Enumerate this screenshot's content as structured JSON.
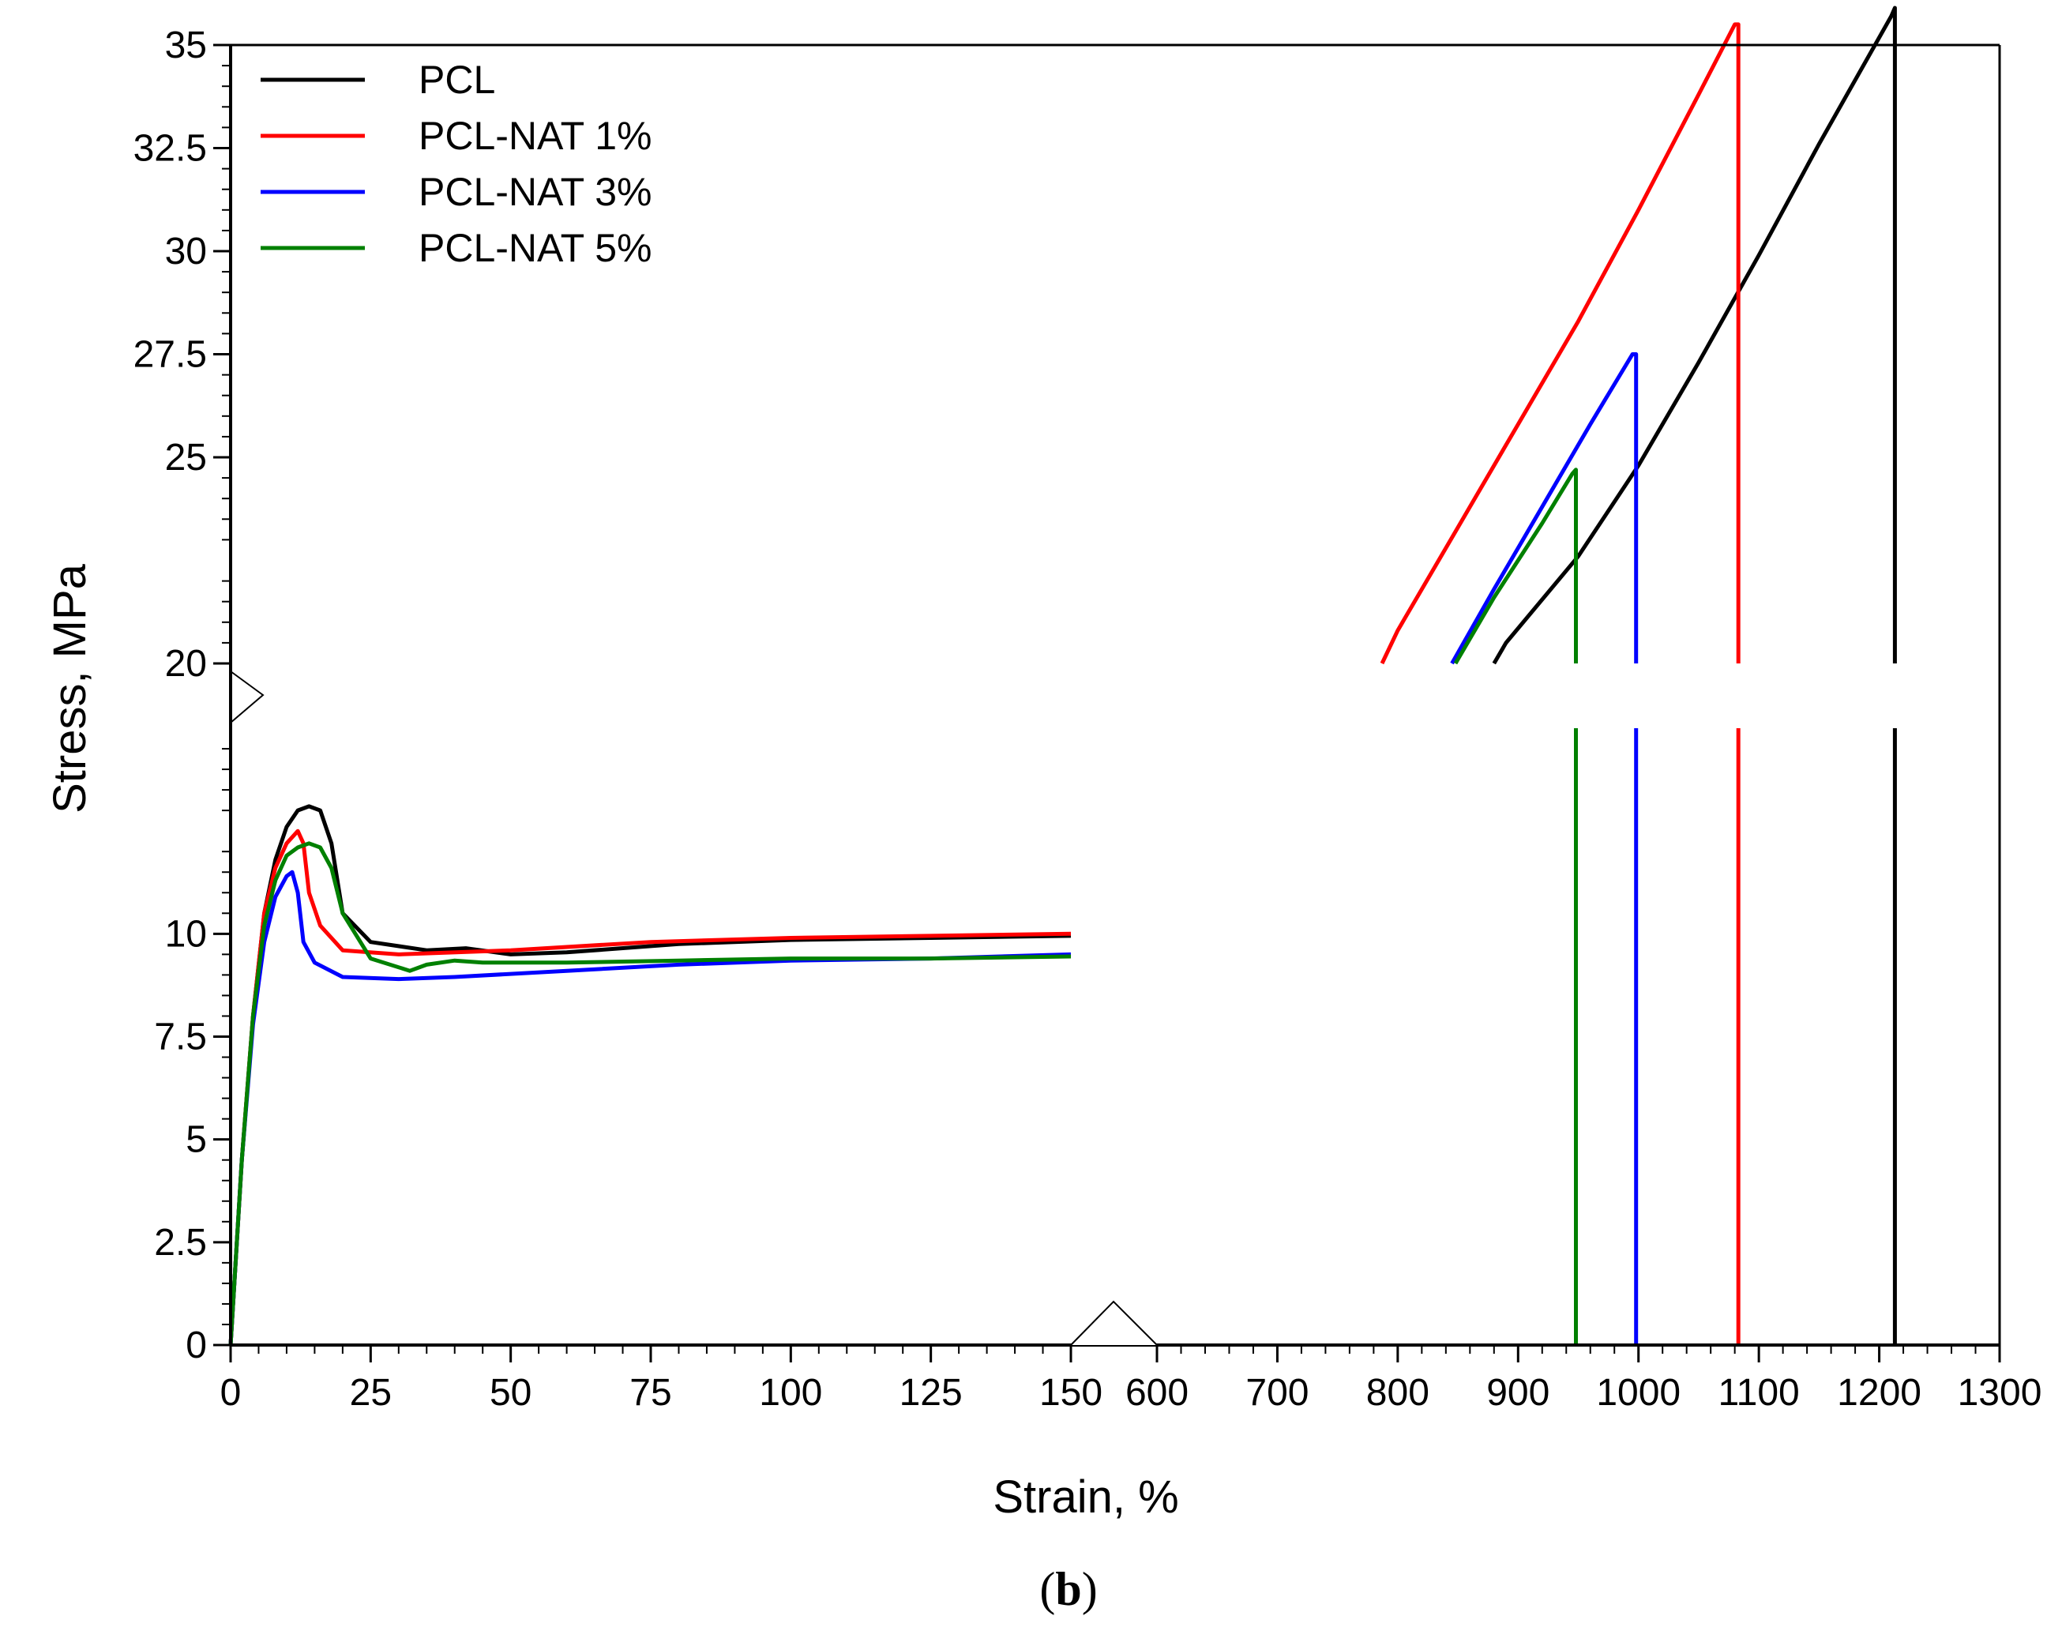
{
  "chart_data": {
    "type": "line",
    "xlabel": "Strain, %",
    "ylabel": "Stress, MPa",
    "panel_label_open": "(",
    "panel_label_letter": "b",
    "panel_label_close": ")",
    "x_break": [
      150,
      600
    ],
    "y_break": [
      15,
      20
    ],
    "xlim_left": [
      0,
      150
    ],
    "xlim_right": [
      600,
      1300
    ],
    "ylim_lower": [
      0,
      15
    ],
    "ylim_upper": [
      20,
      35
    ],
    "x_ticks_left": [
      0,
      25,
      50,
      75,
      100,
      125,
      150
    ],
    "x_tick_labels_left": [
      "0",
      "25",
      "50",
      "75",
      "100",
      "125",
      "150"
    ],
    "x_ticks_right": [
      600,
      700,
      800,
      900,
      1000,
      1100,
      1200,
      1300
    ],
    "x_tick_labels_right": [
      "600",
      "700",
      "800",
      "900",
      "1000",
      "1100",
      "1200",
      "1300"
    ],
    "y_ticks_lower": [
      0,
      2.5,
      5,
      7.5,
      10
    ],
    "y_tick_labels_lower": [
      "0",
      "2.5",
      "5",
      "7.5",
      "10"
    ],
    "y_ticks_upper": [
      20,
      25,
      27.5,
      30,
      32.5,
      35
    ],
    "y_tick_labels_upper": [
      "20",
      "25",
      "27.5",
      "30",
      "32.5",
      "35"
    ],
    "legend_position": "top-left",
    "series": [
      {
        "name": "PCL",
        "color": "#000000",
        "points": [
          [
            0,
            0
          ],
          [
            2,
            4.5
          ],
          [
            4,
            8
          ],
          [
            6,
            10.5
          ],
          [
            8,
            11.8
          ],
          [
            10,
            12.6
          ],
          [
            12,
            13
          ],
          [
            14,
            13.1
          ],
          [
            16,
            13
          ],
          [
            18,
            12.2
          ],
          [
            20,
            10.5
          ],
          [
            25,
            9.8
          ],
          [
            35,
            9.6
          ],
          [
            42,
            9.65
          ],
          [
            50,
            9.5
          ],
          [
            60,
            9.55
          ],
          [
            80,
            9.75
          ],
          [
            100,
            9.85
          ],
          [
            125,
            9.9
          ],
          [
            150,
            9.95
          ],
          [
            880,
            20
          ],
          [
            890,
            20.5
          ],
          [
            950,
            22.6
          ],
          [
            1000,
            24.8
          ],
          [
            1050,
            27.3
          ],
          [
            1100,
            29.9
          ],
          [
            1150,
            32.6
          ],
          [
            1210,
            35.7
          ],
          [
            1213,
            35.9
          ],
          [
            1213,
            15
          ],
          [
            1213,
            0
          ]
        ]
      },
      {
        "name": "PCL-NAT 1%",
        "color": "#ff0000",
        "points": [
          [
            0,
            0
          ],
          [
            2,
            4.5
          ],
          [
            4,
            8
          ],
          [
            6,
            10.5
          ],
          [
            8,
            11.6
          ],
          [
            10,
            12.2
          ],
          [
            12,
            12.5
          ],
          [
            13,
            12.2
          ],
          [
            14,
            11
          ],
          [
            16,
            10.2
          ],
          [
            20,
            9.6
          ],
          [
            30,
            9.5
          ],
          [
            50,
            9.6
          ],
          [
            75,
            9.8
          ],
          [
            100,
            9.9
          ],
          [
            125,
            9.95
          ],
          [
            150,
            10
          ],
          [
            787,
            20
          ],
          [
            800,
            20.8
          ],
          [
            850,
            23.3
          ],
          [
            900,
            25.8
          ],
          [
            950,
            28.3
          ],
          [
            1000,
            31
          ],
          [
            1050,
            33.8
          ],
          [
            1080,
            35.5
          ],
          [
            1083,
            35.5
          ],
          [
            1083,
            15
          ],
          [
            1083,
            0
          ]
        ]
      },
      {
        "name": "PCL-NAT 3%",
        "color": "#0000ff",
        "points": [
          [
            0,
            0
          ],
          [
            2,
            4.5
          ],
          [
            4,
            7.8
          ],
          [
            6,
            9.8
          ],
          [
            8,
            10.9
          ],
          [
            10,
            11.4
          ],
          [
            11,
            11.5
          ],
          [
            12,
            11
          ],
          [
            13,
            9.8
          ],
          [
            15,
            9.3
          ],
          [
            20,
            8.95
          ],
          [
            30,
            8.9
          ],
          [
            40,
            8.95
          ],
          [
            60,
            9.1
          ],
          [
            80,
            9.25
          ],
          [
            100,
            9.35
          ],
          [
            125,
            9.4
          ],
          [
            150,
            9.5
          ],
          [
            845,
            20
          ],
          [
            880,
            21.8
          ],
          [
            920,
            23.8
          ],
          [
            960,
            25.8
          ],
          [
            995,
            27.5
          ],
          [
            998,
            27.5
          ],
          [
            998,
            15
          ],
          [
            998,
            0
          ]
        ]
      },
      {
        "name": "PCL-NAT 5%",
        "color": "#008000",
        "points": [
          [
            0,
            0
          ],
          [
            2,
            4.5
          ],
          [
            4,
            8
          ],
          [
            6,
            10.2
          ],
          [
            8,
            11.3
          ],
          [
            10,
            11.9
          ],
          [
            12,
            12.1
          ],
          [
            14,
            12.2
          ],
          [
            16,
            12.1
          ],
          [
            18,
            11.6
          ],
          [
            20,
            10.5
          ],
          [
            25,
            9.4
          ],
          [
            32,
            9.1
          ],
          [
            35,
            9.25
          ],
          [
            40,
            9.35
          ],
          [
            45,
            9.3
          ],
          [
            60,
            9.3
          ],
          [
            80,
            9.35
          ],
          [
            100,
            9.4
          ],
          [
            125,
            9.4
          ],
          [
            150,
            9.45
          ],
          [
            848,
            20
          ],
          [
            880,
            21.6
          ],
          [
            920,
            23.4
          ],
          [
            945,
            24.6
          ],
          [
            948,
            24.7
          ],
          [
            948,
            15
          ],
          [
            948,
            0
          ]
        ]
      }
    ]
  }
}
